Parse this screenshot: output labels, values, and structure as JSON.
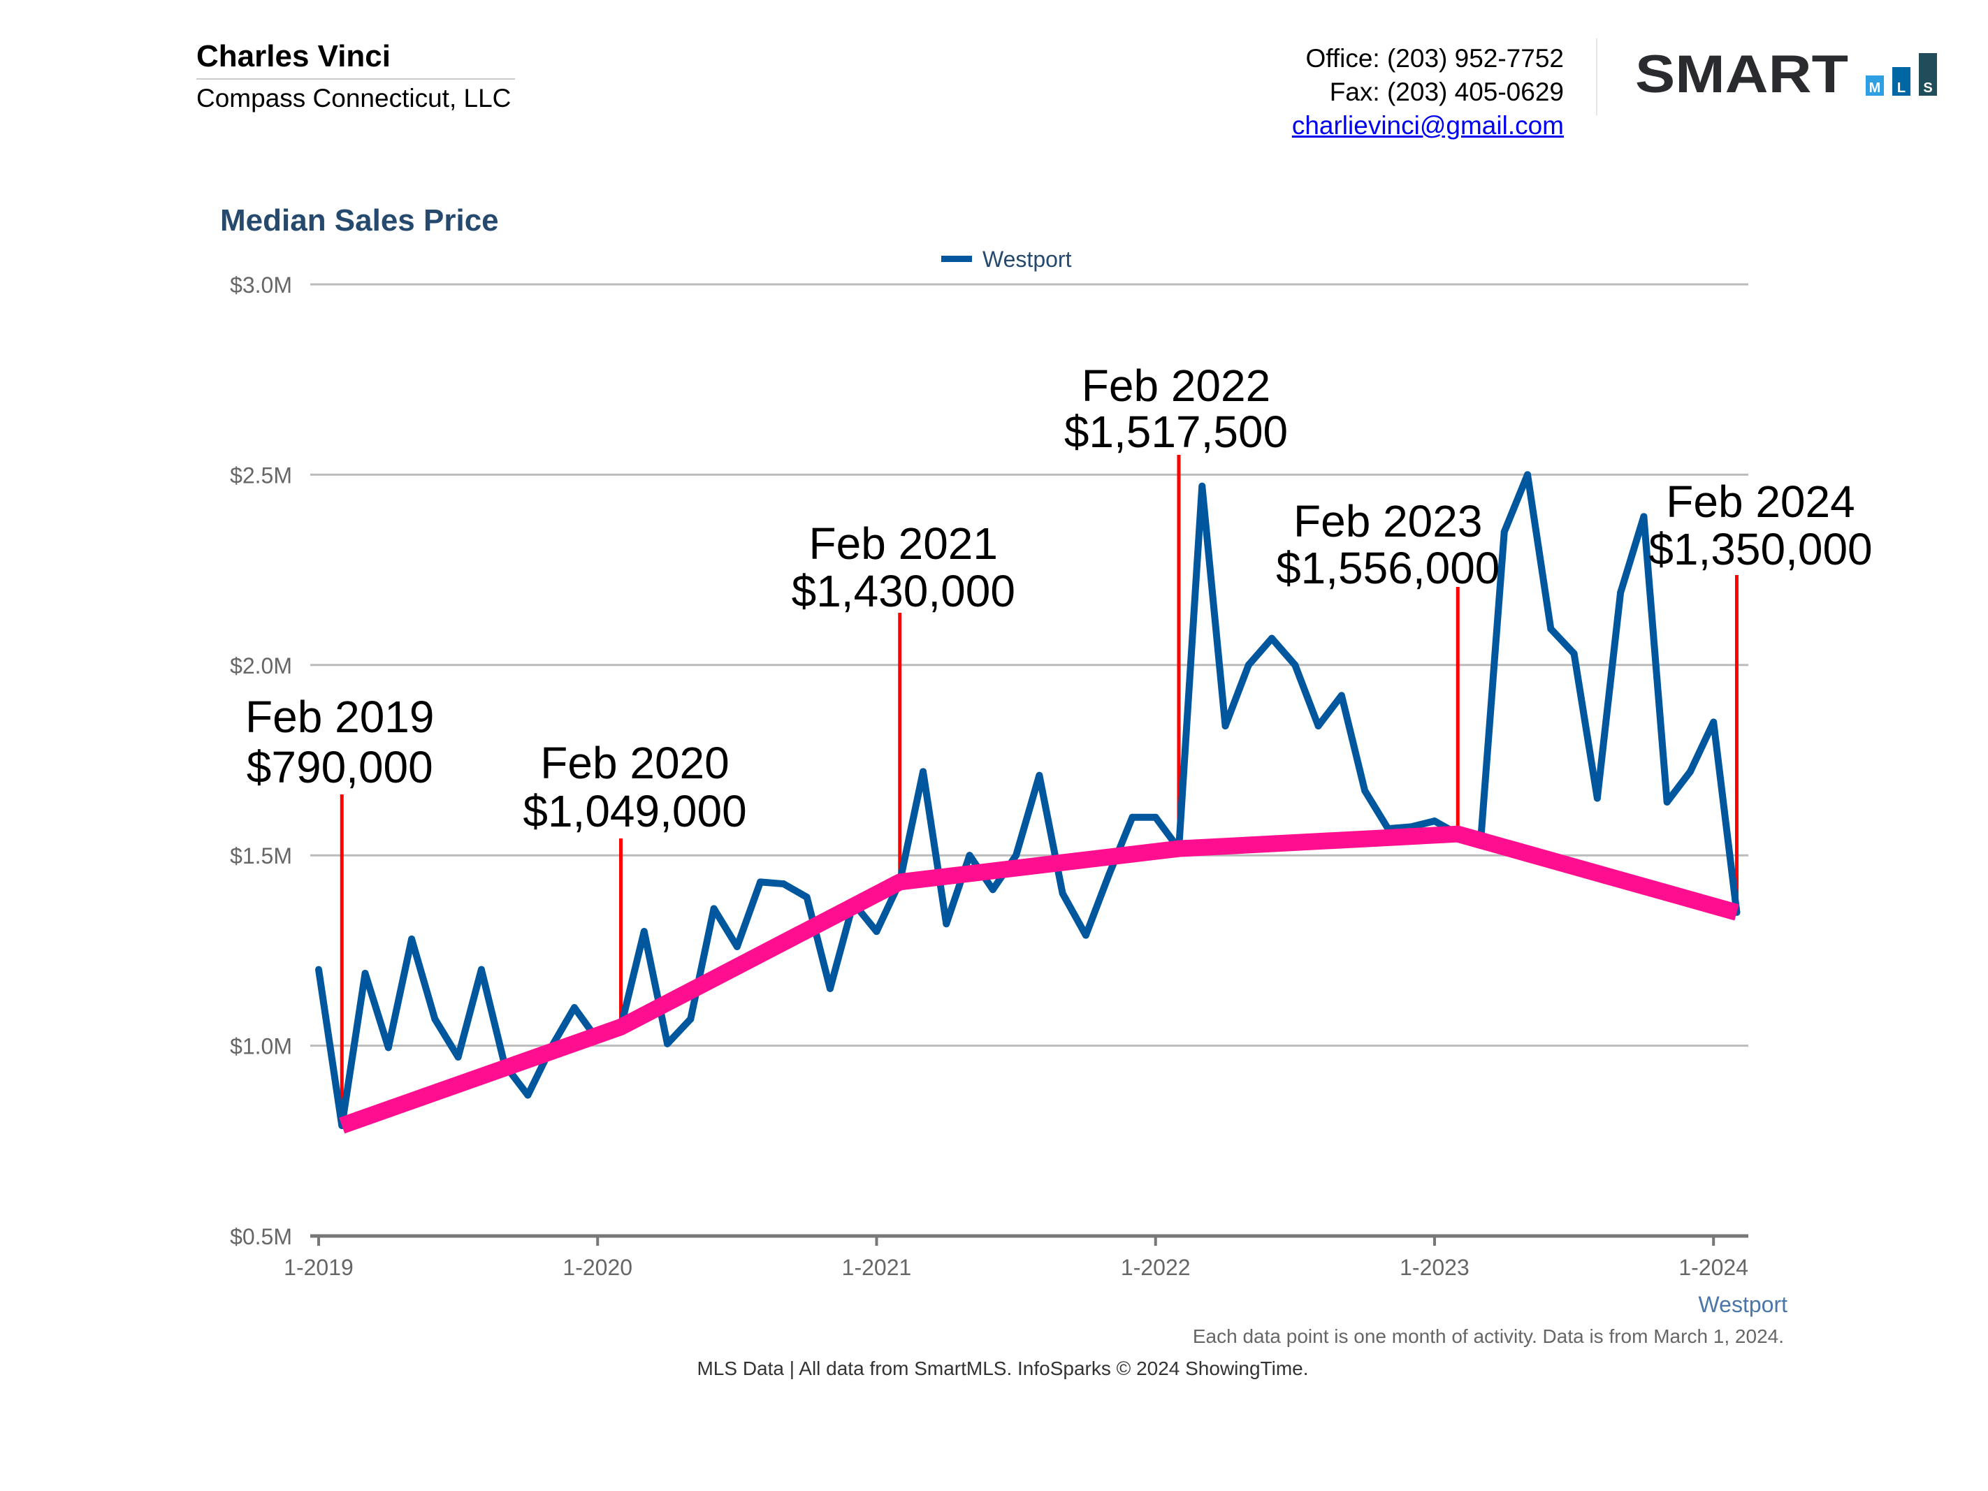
{
  "header": {
    "agent_name": "Charles Vinci",
    "company": "Compass Connecticut, LLC",
    "office": "Office: (203) 952-7752",
    "fax": "Fax: (203) 405-0629",
    "email": "charlievinci@gmail.com",
    "logo_text": "SMART",
    "logo_letters": [
      "M",
      "L",
      "S"
    ]
  },
  "colors": {
    "series": "#00579e",
    "trend": "#ff0f8f",
    "marker": "#ff0000",
    "title": "#264a6e",
    "grid": "#bbbbbb"
  },
  "chart_data": {
    "type": "line",
    "title": "Median Sales Price",
    "ylim": [
      500000,
      3000000
    ],
    "y_ticks": [
      {
        "v": 500000,
        "label": "$0.5M"
      },
      {
        "v": 1000000,
        "label": "$1.0M"
      },
      {
        "v": 1500000,
        "label": "$1.5M"
      },
      {
        "v": 2000000,
        "label": "$2.0M"
      },
      {
        "v": 2500000,
        "label": "$2.5M"
      },
      {
        "v": 3000000,
        "label": "$3.0M"
      }
    ],
    "x_ticks": [
      "1-2019",
      "1-2020",
      "1-2021",
      "1-2022",
      "1-2023",
      "1-2024"
    ],
    "x_axis_series_label": "Westport",
    "grid": true,
    "legend": {
      "position": "top-center",
      "entries": [
        "Westport"
      ]
    },
    "series": [
      {
        "name": "Westport",
        "x": [
          "2019-01",
          "2019-02",
          "2019-03",
          "2019-04",
          "2019-05",
          "2019-06",
          "2019-07",
          "2019-08",
          "2019-09",
          "2019-10",
          "2019-11",
          "2019-12",
          "2020-01",
          "2020-02",
          "2020-03",
          "2020-04",
          "2020-05",
          "2020-06",
          "2020-07",
          "2020-08",
          "2020-09",
          "2020-10",
          "2020-11",
          "2020-12",
          "2021-01",
          "2021-02",
          "2021-03",
          "2021-04",
          "2021-05",
          "2021-06",
          "2021-07",
          "2021-08",
          "2021-09",
          "2021-10",
          "2021-11",
          "2021-12",
          "2022-01",
          "2022-02",
          "2022-03",
          "2022-04",
          "2022-05",
          "2022-06",
          "2022-07",
          "2022-08",
          "2022-09",
          "2022-10",
          "2022-11",
          "2022-12",
          "2023-01",
          "2023-02",
          "2023-03",
          "2023-04",
          "2023-05",
          "2023-06",
          "2023-07",
          "2023-08",
          "2023-09",
          "2023-10",
          "2023-11",
          "2023-12",
          "2024-01",
          "2024-02"
        ],
        "values": [
          1200000,
          790000,
          1190000,
          995000,
          1280000,
          1070000,
          970000,
          1200000,
          950000,
          870000,
          995000,
          1100000,
          1015000,
          1049000,
          1300000,
          1005000,
          1070000,
          1360000,
          1260000,
          1430000,
          1425000,
          1390000,
          1150000,
          1375000,
          1300000,
          1430000,
          1720000,
          1320000,
          1500000,
          1410000,
          1500000,
          1710000,
          1400000,
          1290000,
          1450000,
          1600000,
          1600000,
          1517500,
          2470000,
          1840000,
          2000000,
          2070000,
          2000000,
          1840000,
          1920000,
          1670000,
          1570000,
          1575000,
          1590000,
          1556000,
          1550000,
          2350000,
          2500000,
          2095000,
          2030000,
          1650000,
          2190000,
          2390000,
          1640000,
          1720000,
          1850000,
          1350000
        ]
      }
    ],
    "annotations": [
      {
        "x": "2019-02",
        "period": "Feb 2019",
        "value_label": "$790,000",
        "value": 790000
      },
      {
        "x": "2020-02",
        "period": "Feb 2020",
        "value_label": "$1,049,000",
        "value": 1049000
      },
      {
        "x": "2021-02",
        "period": "Feb 2021",
        "value_label": "$1,430,000",
        "value": 1430000
      },
      {
        "x": "2022-02",
        "period": "Feb 2022",
        "value_label": "$1,517,500",
        "value": 1517500
      },
      {
        "x": "2023-02",
        "period": "Feb 2023",
        "value_label": "$1,556,000",
        "value": 1556000
      },
      {
        "x": "2024-02",
        "period": "Feb 2024",
        "value_label": "$1,350,000",
        "value": 1350000
      }
    ]
  },
  "footer": {
    "note": "Each data point is one month of activity. Data is from March 1, 2024.",
    "source": "MLS Data | All data from SmartMLS. InfoSparks © 2024 ShowingTime."
  }
}
